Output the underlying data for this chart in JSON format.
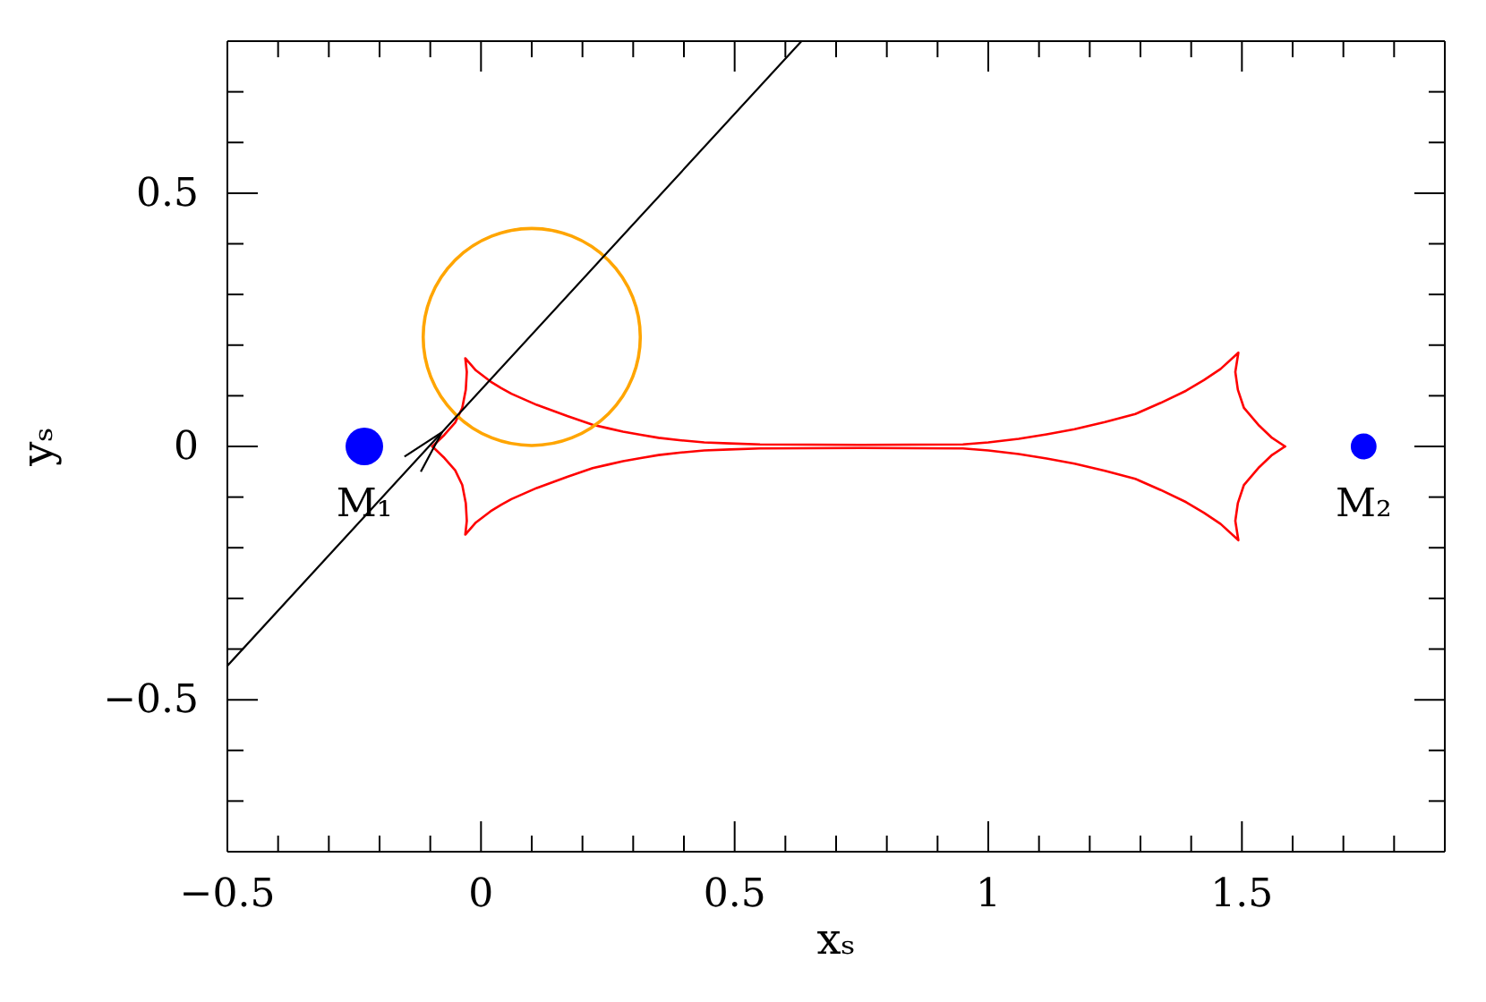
{
  "chart_data": {
    "type": "line",
    "xlabel": "xₛ",
    "ylabel": "yₛ",
    "xlim": [
      -0.5,
      1.9
    ],
    "ylim": [
      -0.8,
      0.8
    ],
    "xticks": [
      {
        "value": -0.5,
        "label": "−0.5"
      },
      {
        "value": -0.4,
        "label": null
      },
      {
        "value": -0.3,
        "label": null
      },
      {
        "value": -0.2,
        "label": null
      },
      {
        "value": -0.1,
        "label": null
      },
      0,
      {
        "value": 0.1,
        "label": null
      },
      {
        "value": 0.2,
        "label": null
      },
      {
        "value": 0.3,
        "label": null
      },
      {
        "value": 0.4,
        "label": null
      },
      0.5,
      {
        "value": 0.6,
        "label": null
      },
      {
        "value": 0.7,
        "label": null
      },
      {
        "value": 0.8,
        "label": null
      },
      {
        "value": 0.9,
        "label": null
      },
      1,
      {
        "value": 1.1,
        "label": null
      },
      {
        "value": 1.2,
        "label": null
      },
      {
        "value": 1.3,
        "label": null
      },
      {
        "value": 1.4,
        "label": null
      },
      1.5,
      {
        "value": 1.6,
        "label": null
      },
      {
        "value": 1.7,
        "label": null
      },
      {
        "value": 1.8,
        "label": null
      }
    ],
    "yticks": [
      {
        "value": -0.7,
        "label": null
      },
      {
        "value": -0.6,
        "label": null
      },
      {
        "value": -0.5,
        "label": "−0.5"
      },
      {
        "value": -0.4,
        "label": null
      },
      {
        "value": -0.3,
        "label": null
      },
      {
        "value": -0.2,
        "label": null
      },
      {
        "value": -0.1,
        "label": null
      },
      0,
      {
        "value": 0.1,
        "label": null
      },
      {
        "value": 0.2,
        "label": null
      },
      {
        "value": 0.3,
        "label": null
      },
      {
        "value": 0.4,
        "label": null
      },
      0.5,
      {
        "value": 0.6,
        "label": null
      },
      {
        "value": 0.7,
        "label": null
      }
    ],
    "series": [
      {
        "color": "#ff0000",
        "x": [
          -0.096,
          -0.072,
          -0.051,
          -0.037,
          -0.03,
          -0.028,
          -0.031,
          -0.01,
          0.019,
          0.04,
          0.06,
          0.085,
          0.11,
          0.14,
          0.17,
          0.22,
          0.25,
          0.28,
          0.315,
          0.35,
          0.395,
          0.44,
          0.49,
          0.55,
          0.75,
          0.95,
          1.0,
          1.06,
          1.115,
          1.17,
          1.23,
          1.29,
          1.34,
          1.39,
          1.425,
          1.458,
          1.493,
          1.487,
          1.492,
          1.504,
          1.534,
          1.558,
          1.585
        ],
        "values": [
          0,
          0.023,
          0.047,
          0.076,
          0.112,
          0.147,
          0.174,
          0.15,
          0.128,
          0.115,
          0.104,
          0.093,
          0.082,
          0.071,
          0.06,
          0.043,
          0.036,
          0.029,
          0.023,
          0.017,
          0.012,
          0.008,
          0.006,
          0.004,
          0.003,
          0.004,
          0.008,
          0.015,
          0.024,
          0.034,
          0.048,
          0.064,
          0.086,
          0.11,
          0.131,
          0.153,
          0.185,
          0.147,
          0.112,
          0.076,
          0.041,
          0.018,
          0
        ]
      },
      {
        "color": "#ff0000",
        "x": [
          -0.096,
          -0.072,
          -0.051,
          -0.037,
          -0.03,
          -0.028,
          -0.031,
          -0.01,
          0.019,
          0.04,
          0.06,
          0.085,
          0.11,
          0.14,
          0.17,
          0.22,
          0.25,
          0.28,
          0.315,
          0.35,
          0.395,
          0.44,
          0.49,
          0.55,
          0.75,
          0.95,
          1.0,
          1.06,
          1.115,
          1.17,
          1.23,
          1.29,
          1.34,
          1.39,
          1.425,
          1.458,
          1.493,
          1.487,
          1.492,
          1.504,
          1.534,
          1.558,
          1.585
        ],
        "values": [
          0,
          -0.023,
          -0.047,
          -0.076,
          -0.112,
          -0.147,
          -0.174,
          -0.15,
          -0.128,
          -0.115,
          -0.104,
          -0.093,
          -0.082,
          -0.071,
          -0.06,
          -0.043,
          -0.036,
          -0.029,
          -0.023,
          -0.017,
          -0.012,
          -0.008,
          -0.006,
          -0.004,
          -0.003,
          -0.004,
          -0.008,
          -0.015,
          -0.024,
          -0.034,
          -0.048,
          -0.064,
          -0.086,
          -0.11,
          -0.131,
          -0.153,
          -0.185,
          -0.147,
          -0.112,
          -0.076,
          -0.041,
          -0.018,
          0
        ]
      },
      {
        "color": "#000000",
        "x": [
          -0.5,
          -0.077,
          0.631
        ],
        "values": [
          -0.433,
          0.028,
          0.799
        ]
      },
      {
        "type": "bubble",
        "color": "#0000ff",
        "x": [
          -0.23,
          1.74
        ],
        "values": [
          0,
          0
        ],
        "sizes": [
          1,
          0.47
        ]
      }
    ],
    "annotations": [
      {
        "text": "M₁",
        "x": -0.23,
        "y": 0
      },
      {
        "text": "M₂",
        "x": 1.74,
        "y": 0
      }
    ]
  }
}
